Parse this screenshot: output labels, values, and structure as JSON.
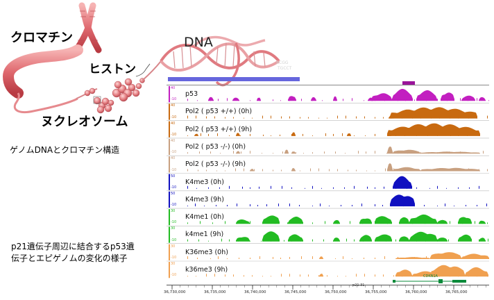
{
  "labels": {
    "chromatin": "クロマチン",
    "dna": "DNA",
    "histone": "ヒストン",
    "nucleosome": "ヌクレオソーム"
  },
  "captions": {
    "structure": "ゲノムDNAとクロマチン構造",
    "p21_line1": "p21遺伝子周辺に結合するp53遺",
    "p21_line2": "伝子とエピゲノムの変化の様子"
  },
  "tracks": [
    {
      "name": "p53",
      "color": "#c21fc0",
      "scale": [
        "40",
        "-10"
      ]
    },
    {
      "name": "Pol2 ( p53 +/+) (0h)",
      "color": "#c86a10",
      "scale": [
        "40",
        "-10"
      ]
    },
    {
      "name": "Pol2 ( p53 +/+) (9h)",
      "color": "#c86a10",
      "scale": [
        "40",
        "-10"
      ]
    },
    {
      "name": "Pol2 ( p53 -/-) (0h)",
      "color": "#c8a080",
      "scale": [
        "40",
        "-10"
      ]
    },
    {
      "name": "Pol2 ( p53 -/-) (9h)",
      "color": "#c8a080",
      "scale": [
        "40",
        "-10"
      ]
    },
    {
      "name": "K4me3 (0h)",
      "color": "#1010c0",
      "scale": [
        "50",
        "-10"
      ]
    },
    {
      "name": "K4me3 (9h)",
      "color": "#1010c0",
      "scale": [
        "50",
        "-10"
      ]
    },
    {
      "name": "K4me1 (0h)",
      "color": "#22bb22",
      "scale": [
        "30",
        "-10"
      ]
    },
    {
      "name": "k4me1 (9h)",
      "color": "#22bb22",
      "scale": [
        "30",
        "-10"
      ]
    },
    {
      "name": "K36me3 (0h)",
      "color": "#f0a050",
      "scale": [
        "30",
        "-10"
      ]
    },
    {
      "name": "k36me3 (9h)",
      "color": "#f0a050",
      "scale": [
        "30",
        "-10"
      ]
    }
  ],
  "gene": {
    "name": "CDKN1A",
    "band": "p21.31"
  },
  "ruler": [
    "36,730,000",
    "36,735,000",
    "36,740,000",
    "36,745,000",
    "36,750,000",
    "36,755,000",
    "36,760,000",
    "36,765,000"
  ],
  "colors": {
    "chrom_bar": "#6666dd",
    "chrom_mark": "#9a149a",
    "chromatin_pink": "#e57b80"
  }
}
